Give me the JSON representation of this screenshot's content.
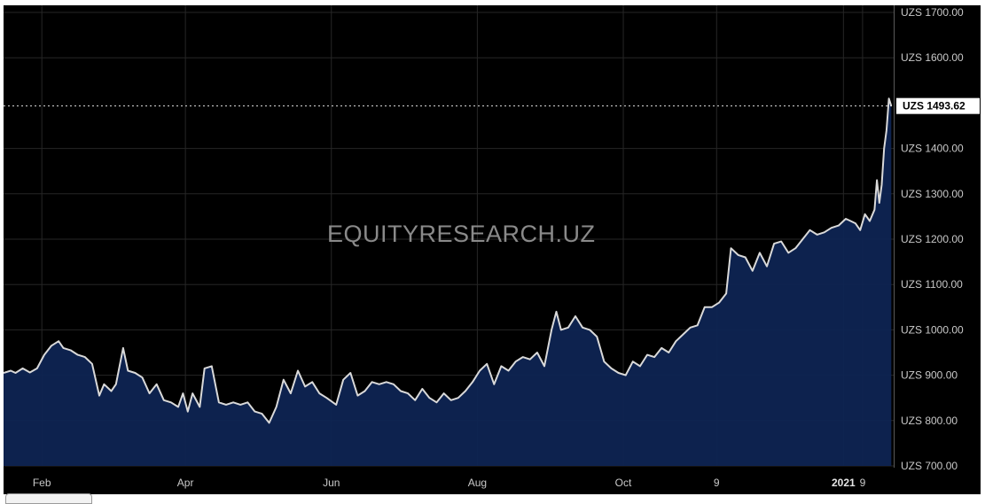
{
  "watermark": "EQUITYRESEARCH.UZ",
  "colors": {
    "background": "#000000",
    "area_fill": "#0e2452",
    "line": "#d9d9d9",
    "grid": "#262626",
    "axis_text": "#c9c9c9",
    "price_tag_bg": "#ffffff"
  },
  "chart_data": {
    "type": "area",
    "title": "",
    "xlabel": "",
    "ylabel": "",
    "currency_prefix": "UZS",
    "ylim": [
      700,
      1700
    ],
    "y_ticks": [
      {
        "value": 700,
        "label": "UZS 700.00"
      },
      {
        "value": 800,
        "label": "UZS 800.00"
      },
      {
        "value": 900,
        "label": "UZS 900.00"
      },
      {
        "value": 1000,
        "label": "UZS 1000.00"
      },
      {
        "value": 1100,
        "label": "UZS 1100.00"
      },
      {
        "value": 1200,
        "label": "UZS 1200.00"
      },
      {
        "value": 1300,
        "label": "UZS 1300.00"
      },
      {
        "value": 1400,
        "label": "UZS 1400.00"
      },
      {
        "value": 1600,
        "label": "UZS 1600.00"
      },
      {
        "value": 1700,
        "label": "UZS 1700.00"
      }
    ],
    "x_ticks": [
      {
        "date": "2020-02-01",
        "label": "Feb",
        "bold": false
      },
      {
        "date": "2020-04-01",
        "label": "Apr",
        "bold": false
      },
      {
        "date": "2020-06-01",
        "label": "Jun",
        "bold": false
      },
      {
        "date": "2020-08-01",
        "label": "Aug",
        "bold": false
      },
      {
        "date": "2020-10-01",
        "label": "Oct",
        "bold": false
      },
      {
        "date": "2020-11-09",
        "label": "9",
        "bold": false
      },
      {
        "date": "2021-01-01",
        "label": "2021",
        "bold": true
      },
      {
        "date": "2021-01-09",
        "label": "9",
        "bold": false
      }
    ],
    "xlim": [
      "2020-01-16",
      "2021-01-22"
    ],
    "last_value": {
      "value": 1493.62,
      "label": "UZS 1493.62"
    },
    "grid": true,
    "series": [
      {
        "values": [
          [
            "2020-01-16",
            905
          ],
          [
            "2020-01-19",
            910
          ],
          [
            "2020-01-21",
            905
          ],
          [
            "2020-01-24",
            915
          ],
          [
            "2020-01-27",
            906
          ],
          [
            "2020-01-30",
            915
          ],
          [
            "2020-02-02",
            945
          ],
          [
            "2020-02-05",
            965
          ],
          [
            "2020-02-08",
            975
          ],
          [
            "2020-02-10",
            960
          ],
          [
            "2020-02-13",
            955
          ],
          [
            "2020-02-16",
            945
          ],
          [
            "2020-02-19",
            940
          ],
          [
            "2020-02-22",
            925
          ],
          [
            "2020-02-25",
            855
          ],
          [
            "2020-02-27",
            880
          ],
          [
            "2020-03-01",
            865
          ],
          [
            "2020-03-03",
            880
          ],
          [
            "2020-03-06",
            960
          ],
          [
            "2020-03-08",
            910
          ],
          [
            "2020-03-11",
            905
          ],
          [
            "2020-03-14",
            895
          ],
          [
            "2020-03-17",
            860
          ],
          [
            "2020-03-20",
            880
          ],
          [
            "2020-03-23",
            845
          ],
          [
            "2020-03-26",
            840
          ],
          [
            "2020-03-29",
            830
          ],
          [
            "2020-03-31",
            860
          ],
          [
            "2020-04-02",
            820
          ],
          [
            "2020-04-04",
            860
          ],
          [
            "2020-04-07",
            830
          ],
          [
            "2020-04-09",
            915
          ],
          [
            "2020-04-12",
            920
          ],
          [
            "2020-04-15",
            840
          ],
          [
            "2020-04-18",
            835
          ],
          [
            "2020-04-21",
            840
          ],
          [
            "2020-04-24",
            835
          ],
          [
            "2020-04-27",
            840
          ],
          [
            "2020-04-30",
            820
          ],
          [
            "2020-05-03",
            815
          ],
          [
            "2020-05-06",
            795
          ],
          [
            "2020-05-09",
            830
          ],
          [
            "2020-05-12",
            890
          ],
          [
            "2020-05-15",
            860
          ],
          [
            "2020-05-18",
            910
          ],
          [
            "2020-05-21",
            875
          ],
          [
            "2020-05-24",
            885
          ],
          [
            "2020-05-27",
            860
          ],
          [
            "2020-05-30",
            850
          ],
          [
            "2020-06-03",
            835
          ],
          [
            "2020-06-06",
            890
          ],
          [
            "2020-06-09",
            905
          ],
          [
            "2020-06-12",
            855
          ],
          [
            "2020-06-15",
            865
          ],
          [
            "2020-06-18",
            885
          ],
          [
            "2020-06-21",
            880
          ],
          [
            "2020-06-24",
            885
          ],
          [
            "2020-06-27",
            880
          ],
          [
            "2020-06-30",
            865
          ],
          [
            "2020-07-03",
            860
          ],
          [
            "2020-07-06",
            845
          ],
          [
            "2020-07-09",
            870
          ],
          [
            "2020-07-12",
            850
          ],
          [
            "2020-07-15",
            840
          ],
          [
            "2020-07-18",
            860
          ],
          [
            "2020-07-21",
            845
          ],
          [
            "2020-07-24",
            850
          ],
          [
            "2020-07-27",
            865
          ],
          [
            "2020-07-30",
            885
          ],
          [
            "2020-08-02",
            910
          ],
          [
            "2020-08-05",
            925
          ],
          [
            "2020-08-08",
            880
          ],
          [
            "2020-08-11",
            920
          ],
          [
            "2020-08-14",
            910
          ],
          [
            "2020-08-17",
            930
          ],
          [
            "2020-08-20",
            940
          ],
          [
            "2020-08-23",
            935
          ],
          [
            "2020-08-26",
            950
          ],
          [
            "2020-08-29",
            920
          ],
          [
            "2020-09-01",
            1000
          ],
          [
            "2020-09-03",
            1040
          ],
          [
            "2020-09-05",
            1000
          ],
          [
            "2020-09-08",
            1005
          ],
          [
            "2020-09-11",
            1030
          ],
          [
            "2020-09-14",
            1005
          ],
          [
            "2020-09-17",
            1000
          ],
          [
            "2020-09-20",
            985
          ],
          [
            "2020-09-23",
            930
          ],
          [
            "2020-09-26",
            915
          ],
          [
            "2020-09-29",
            905
          ],
          [
            "2020-10-02",
            900
          ],
          [
            "2020-10-05",
            930
          ],
          [
            "2020-10-08",
            920
          ],
          [
            "2020-10-11",
            945
          ],
          [
            "2020-10-14",
            940
          ],
          [
            "2020-10-17",
            960
          ],
          [
            "2020-10-20",
            950
          ],
          [
            "2020-10-23",
            975
          ],
          [
            "2020-10-26",
            990
          ],
          [
            "2020-10-29",
            1005
          ],
          [
            "2020-11-01",
            1010
          ],
          [
            "2020-11-04",
            1050
          ],
          [
            "2020-11-07",
            1050
          ],
          [
            "2020-11-10",
            1060
          ],
          [
            "2020-11-13",
            1080
          ],
          [
            "2020-11-15",
            1180
          ],
          [
            "2020-11-18",
            1165
          ],
          [
            "2020-11-21",
            1160
          ],
          [
            "2020-11-24",
            1130
          ],
          [
            "2020-11-27",
            1170
          ],
          [
            "2020-11-30",
            1140
          ],
          [
            "2020-12-03",
            1190
          ],
          [
            "2020-12-06",
            1195
          ],
          [
            "2020-12-09",
            1170
          ],
          [
            "2020-12-12",
            1180
          ],
          [
            "2020-12-15",
            1200
          ],
          [
            "2020-12-18",
            1220
          ],
          [
            "2020-12-21",
            1210
          ],
          [
            "2020-12-24",
            1215
          ],
          [
            "2020-12-27",
            1225
          ],
          [
            "2020-12-30",
            1230
          ],
          [
            "2021-01-02",
            1245
          ],
          [
            "2021-01-04",
            1240
          ],
          [
            "2021-01-06",
            1235
          ],
          [
            "2021-01-08",
            1220
          ],
          [
            "2021-01-10",
            1255
          ],
          [
            "2021-01-12",
            1240
          ],
          [
            "2021-01-14",
            1265
          ],
          [
            "2021-01-15",
            1330
          ],
          [
            "2021-01-16",
            1280
          ],
          [
            "2021-01-17",
            1320
          ],
          [
            "2021-01-18",
            1400
          ],
          [
            "2021-01-19",
            1440
          ],
          [
            "2021-01-20",
            1510
          ],
          [
            "2021-01-21",
            1493.62
          ]
        ]
      }
    ]
  }
}
